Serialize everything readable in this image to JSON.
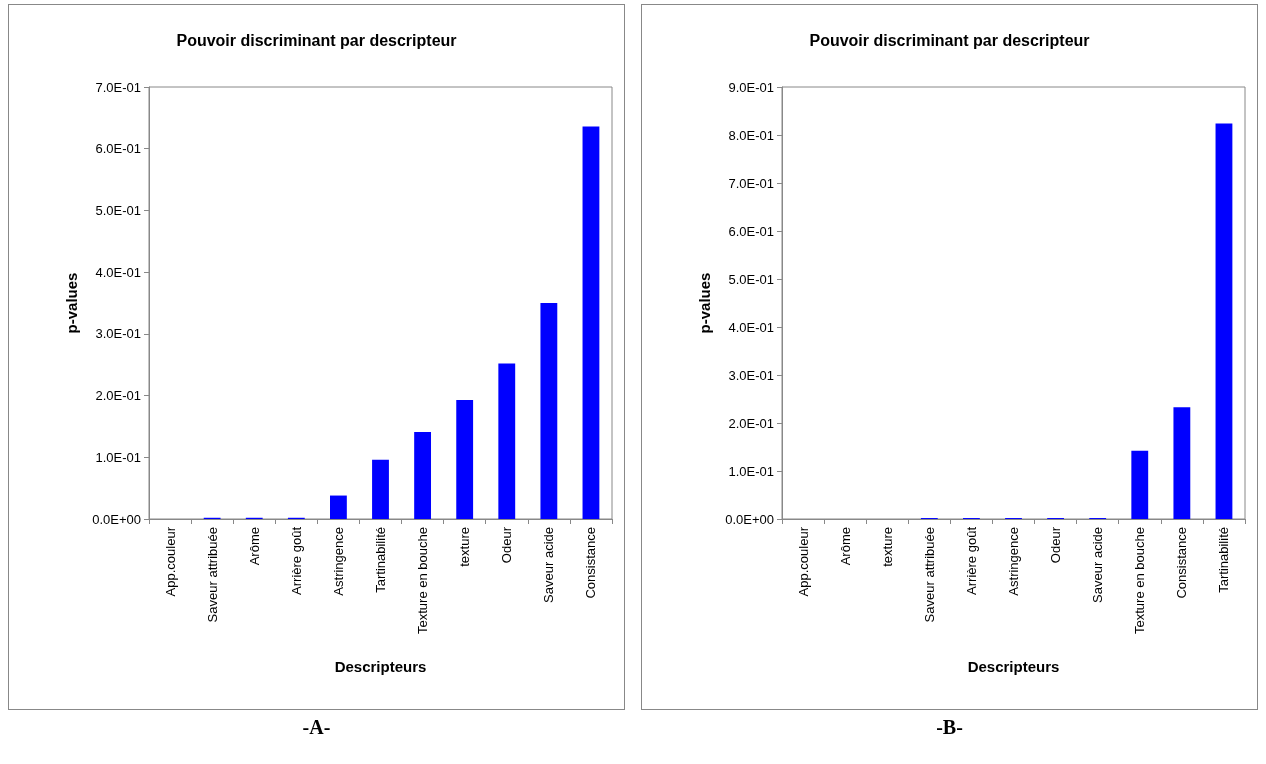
{
  "chart_data": [
    {
      "type": "bar",
      "title": "Pouvoir discriminant par descripteur",
      "xlabel": "Descripteurs",
      "ylabel": "p-values",
      "annotations": [
        "-A-"
      ],
      "categories": [
        "App.couleur",
        "Saveur attribuée",
        "Arôme",
        "Arrière goût",
        "Astringence",
        "Tartinabilité",
        "Texture en bouche",
        "texture",
        "Odeur",
        "Saveur acide",
        "Consistance"
      ],
      "values": [
        0,
        0.002,
        0.002,
        0.002,
        0.038,
        0.096,
        0.141,
        0.193,
        0.252,
        0.35,
        0.636
      ],
      "color": "#0000ff",
      "ylim": [
        0,
        0.7
      ],
      "yticks": [
        {
          "value": 0,
          "label": "0.0E+00"
        },
        {
          "value": 0.1,
          "label": "1.0E-01"
        },
        {
          "value": 0.2,
          "label": "2.0E-01"
        },
        {
          "value": 0.3,
          "label": "3.0E-01"
        },
        {
          "value": 0.4,
          "label": "4.0E-01"
        },
        {
          "value": 0.5,
          "label": "5.0E-01"
        },
        {
          "value": 0.6,
          "label": "6.0E-01"
        },
        {
          "value": 0.7,
          "label": "7.0E-01"
        }
      ],
      "grid": false
    },
    {
      "type": "bar",
      "title": "Pouvoir discriminant par descripteur",
      "xlabel": "Descripteurs",
      "ylabel": "p-values",
      "annotations": [
        "-B-"
      ],
      "categories": [
        "App.couleur",
        "Arôme",
        "texture",
        "Saveur attribuée",
        "Arrière goût",
        "Astringence",
        "Odeur",
        "Saveur acide",
        "Texture en bouche",
        "Consistance",
        "Tartinabilité"
      ],
      "values": [
        0,
        0,
        0,
        0.002,
        0.002,
        0.002,
        0.002,
        0.002,
        0.142,
        0.233,
        0.824
      ],
      "color": "#0000ff",
      "ylim": [
        0,
        0.9
      ],
      "yticks": [
        {
          "value": 0,
          "label": "0.0E+00"
        },
        {
          "value": 0.1,
          "label": "1.0E-01"
        },
        {
          "value": 0.2,
          "label": "2.0E-01"
        },
        {
          "value": 0.3,
          "label": "3.0E-01"
        },
        {
          "value": 0.4,
          "label": "4.0E-01"
        },
        {
          "value": 0.5,
          "label": "5.0E-01"
        },
        {
          "value": 0.6,
          "label": "6.0E-01"
        },
        {
          "value": 0.7,
          "label": "7.0E-01"
        },
        {
          "value": 0.8,
          "label": "8.0E-01"
        },
        {
          "value": 0.9,
          "label": "9.0E-01"
        }
      ],
      "grid": false
    }
  ]
}
